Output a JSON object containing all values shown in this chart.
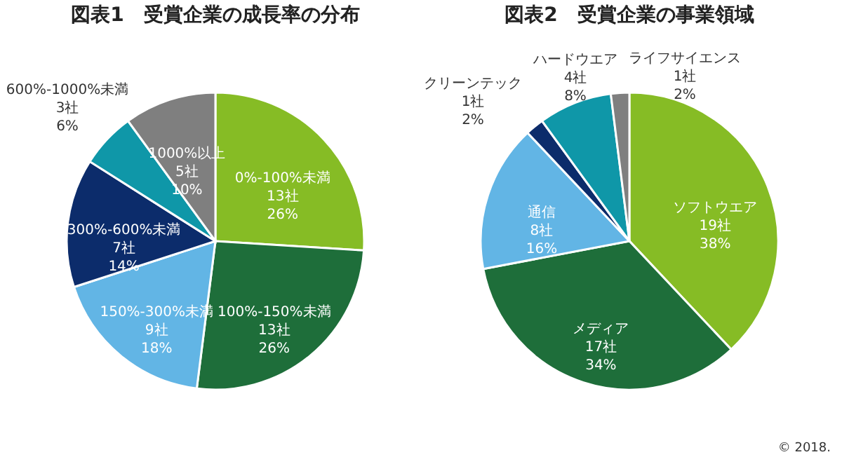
{
  "chart_data": [
    {
      "type": "pie",
      "title": "図表1　受賞企業の成長率の分布",
      "categories": [
        "0%-100%未満",
        "100%-150%未満",
        "150%-300%未満",
        "300%-600%未満",
        "600%-1000%未満",
        "1000%以上"
      ],
      "values": [
        13,
        13,
        9,
        7,
        3,
        5
      ],
      "value_labels": [
        "13社\n26%",
        "13社\n26%",
        "9社\n18%",
        "7社\n14%",
        "3社\n6%",
        "5社\n10%"
      ],
      "colors": [
        "#86bc25",
        "#1e6e3a",
        "#62b5e5",
        "#0c2c6b",
        "#0f97a8",
        "#7f7f7f"
      ],
      "legend": false
    },
    {
      "type": "pie",
      "title": "図表2　受賞企業の事業領域",
      "categories": [
        "ソフトウエア",
        "メディア",
        "通信",
        "クリーンテック",
        "ハードウエア",
        "ライフサイエンス"
      ],
      "values": [
        19,
        17,
        8,
        1,
        4,
        1
      ],
      "value_labels": [
        "19社\n38%",
        "17社\n34%",
        "8社\n16%",
        "1社\n2%",
        "4社\n8%",
        "1社\n2%"
      ],
      "colors": [
        "#86bc25",
        "#1e6e3a",
        "#62b5e5",
        "#0c2c6b",
        "#0f97a8",
        "#7f7f7f"
      ],
      "legend": false,
      "annotations": [
        "© 2018."
      ]
    }
  ]
}
